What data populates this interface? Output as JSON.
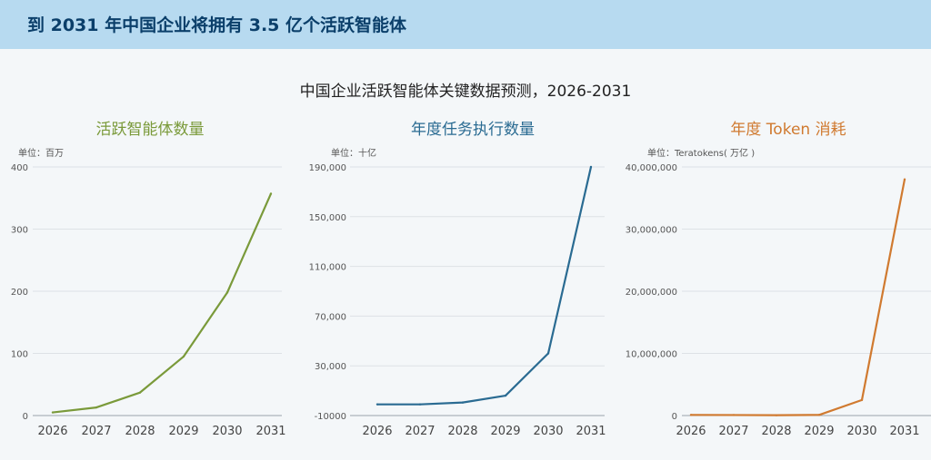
{
  "banner": {
    "title": "到 2031 年中国企业将拥有 3.5 亿个活跃智能体"
  },
  "main_title": "中国企业活跃智能体关键数据预测，2026-2031",
  "chart_data": [
    {
      "type": "line",
      "title": "活跃智能体数量",
      "unit": "单位：百万",
      "color": "#7a9a3a",
      "categories": [
        "2026",
        "2027",
        "2028",
        "2029",
        "2030",
        "2031"
      ],
      "values": [
        5,
        13,
        37,
        95,
        198,
        357
      ],
      "ylim": [
        0,
        400
      ],
      "yticks": [
        0,
        100,
        200,
        300,
        400
      ],
      "ytick_labels": [
        "0",
        "100",
        "200",
        "300",
        "400"
      ],
      "grid": true
    },
    {
      "type": "line",
      "title": "年度任务执行数量",
      "unit": "单位：十亿",
      "color": "#2a6b92",
      "categories": [
        "2026",
        "2027",
        "2028",
        "2029",
        "2030",
        "2031"
      ],
      "values": [
        -1000,
        -1000,
        500,
        6000,
        40000,
        190000
      ],
      "ylim": [
        -10000,
        190000
      ],
      "yticks": [
        -10000,
        30000,
        70000,
        110000,
        150000,
        190000
      ],
      "ytick_labels": [
        "-10000",
        "30,000",
        "70,000",
        "110,000",
        "150,000",
        "190,000"
      ],
      "grid": true
    },
    {
      "type": "line",
      "title": "年度 Token 消耗",
      "unit": "单位：Teratokens( 万亿 )",
      "color": "#d07a30",
      "categories": [
        "2026",
        "2027",
        "2028",
        "2029",
        "2030",
        "2031"
      ],
      "values": [
        100000,
        80000,
        50000,
        100000,
        2500000,
        38000000
      ],
      "ylim": [
        0,
        40000000
      ],
      "yticks": [
        0,
        10000000,
        20000000,
        30000000,
        40000000
      ],
      "ytick_labels": [
        "0",
        "10,000,000",
        "20,000,000",
        "30,000,000",
        "40,000,000"
      ],
      "grid": true
    }
  ]
}
